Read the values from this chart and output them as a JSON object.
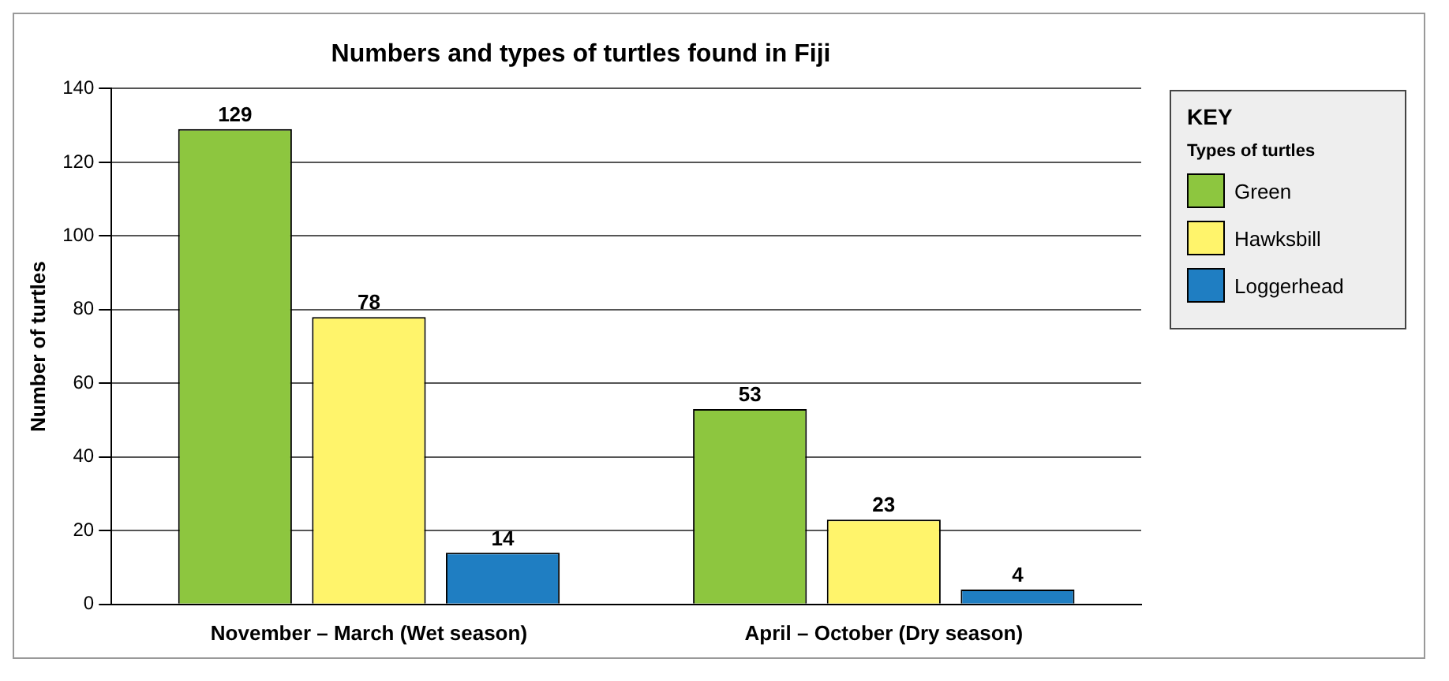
{
  "chart_data": {
    "type": "bar",
    "title": "Numbers and types of turtles found in Fiji",
    "ylabel": "Number of turtles",
    "legend_title": "KEY\nTypes of turtles",
    "categories": [
      "November – March (Wet season)",
      "April – October (Dry season)"
    ],
    "series": [
      {
        "name": "Green",
        "color": "#8dc63f",
        "values": [
          129,
          53
        ]
      },
      {
        "name": "Hawksbill",
        "color": "#fff46b",
        "values": [
          78,
          23
        ]
      },
      {
        "name": "Loggerhead",
        "color": "#1f7ec2",
        "values": [
          14,
          4
        ]
      }
    ],
    "ylim": [
      0,
      140
    ],
    "yticks": [
      0,
      20,
      40,
      60,
      80,
      100,
      120,
      140
    ],
    "grid": "y",
    "legend": "right",
    "data_labels": true
  }
}
